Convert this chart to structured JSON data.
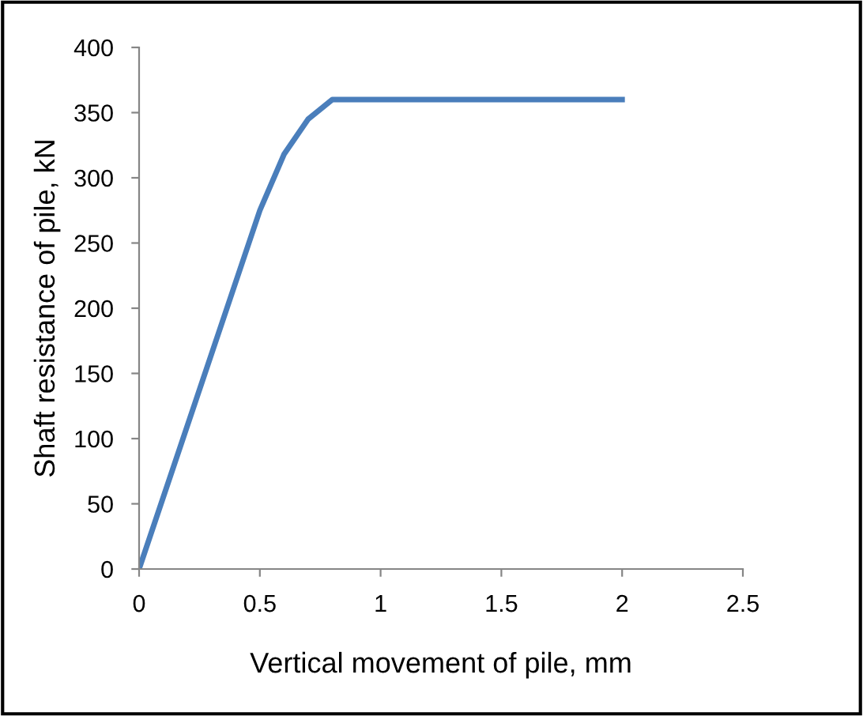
{
  "chart_data": {
    "type": "line",
    "xlabel": "Vertical movement of pile, mm",
    "ylabel": "Shaft resistance of pile, kN",
    "series": [
      {
        "color": "#4a7ebb",
        "x": [
          0,
          0.5,
          0.6,
          0.7,
          0.8,
          2.0
        ],
        "values": [
          0,
          275,
          318,
          345,
          360,
          360
        ]
      }
    ],
    "xlim": [
      0,
      2.5
    ],
    "xticks": [
      0,
      0.5,
      1,
      1.5,
      2,
      2.5
    ],
    "ylim": [
      0,
      400
    ],
    "yticks": [
      0,
      50,
      100,
      150,
      200,
      250,
      300,
      350,
      400
    ],
    "grid": false,
    "legend": false,
    "marker": "none",
    "line_style": "solid"
  }
}
